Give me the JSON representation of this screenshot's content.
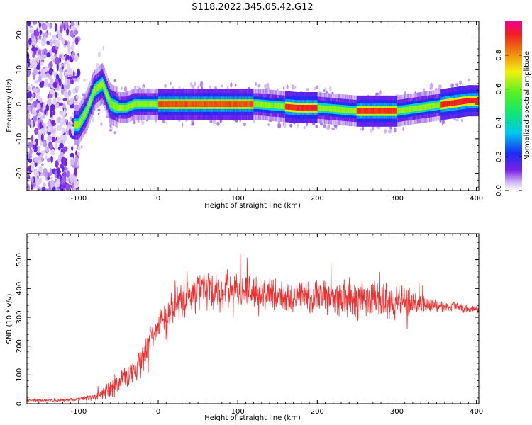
{
  "title": "S118.2022.345.05.42.G12",
  "chart_data": [
    {
      "type": "heatmap",
      "xlabel": "Height of straight line (km)",
      "ylabel": "Frequency (Hz)",
      "xlim": [
        -165,
        403
      ],
      "ylim": [
        -25,
        24
      ],
      "xticks": [
        -100,
        0,
        100,
        200,
        300,
        400
      ],
      "yticks": [
        -20,
        -10,
        0,
        10,
        20
      ],
      "colorbar": {
        "label": "Normalized spectral amplitude",
        "range": [
          0.0,
          1.0
        ],
        "ticks": [
          0.0,
          0.2,
          0.4,
          0.6,
          0.8
        ]
      },
      "ridge": {
        "x": [
          -100,
          -90,
          -80,
          -70,
          -60,
          -50,
          -40,
          -30,
          -20,
          -10,
          0,
          25,
          50,
          75,
          100,
          125,
          150,
          175,
          200,
          225,
          250,
          275,
          300,
          315,
          330,
          345,
          360,
          375,
          390,
          403
        ],
        "y": [
          -6,
          -2,
          4,
          6,
          0,
          -1,
          -1,
          0,
          0,
          0,
          0,
          0,
          0,
          0,
          0,
          0,
          -0.5,
          -1,
          -1,
          -1.5,
          -2,
          -2,
          -2,
          -1.5,
          -1,
          -0.5,
          0,
          0.5,
          1,
          1
        ]
      }
    },
    {
      "type": "line",
      "xlabel": "Height of straight line (km)",
      "ylabel": "SNR (10 * v/v)",
      "xlim": [
        -165,
        403
      ],
      "ylim": [
        0,
        590
      ],
      "xticks": [
        -100,
        0,
        100,
        200,
        300,
        400
      ],
      "yticks": [
        0,
        100,
        200,
        300,
        400,
        500
      ],
      "color": "#f03030",
      "envelope": {
        "x": [
          -165,
          -120,
          -100,
          -80,
          -60,
          -40,
          -25,
          -10,
          0,
          15,
          30,
          50,
          75,
          100,
          150,
          200,
          250,
          300,
          330,
          350,
          375,
          403
        ],
        "mean": [
          12,
          12,
          15,
          25,
          55,
          90,
          130,
          220,
          270,
          320,
          360,
          390,
          395,
          390,
          380,
          370,
          365,
          355,
          345,
          340,
          335,
          325
        ],
        "spread": [
          5,
          6,
          8,
          15,
          45,
          55,
          60,
          60,
          60,
          65,
          75,
          85,
          80,
          70,
          70,
          75,
          85,
          70,
          45,
          30,
          20,
          12
        ]
      }
    }
  ]
}
